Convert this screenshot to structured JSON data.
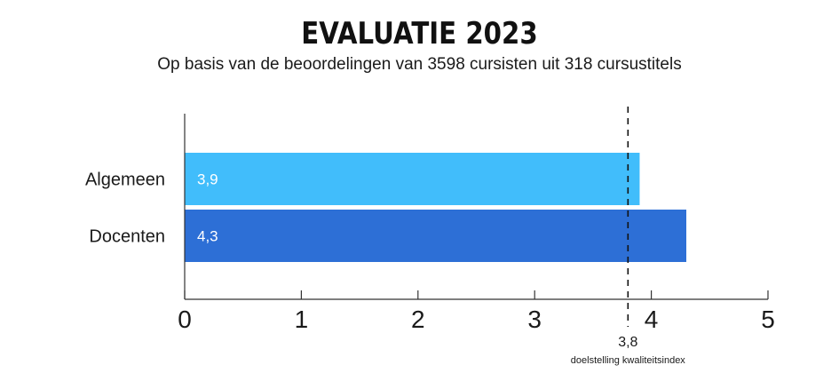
{
  "chart_data": {
    "type": "bar",
    "orientation": "horizontal",
    "title": "EVALUATIE 2023",
    "subtitle": "Op basis van de beoordelingen van 3598 cursisten uit 318 cursustitels",
    "categories": [
      "Algemeen",
      "Docenten"
    ],
    "values": [
      3.9,
      4.3
    ],
    "value_labels": [
      "3,9",
      "4,3"
    ],
    "bar_colors": [
      "#41bdfb",
      "#2d6fd6"
    ],
    "xlim": [
      0,
      5
    ],
    "xticks": [
      0,
      1,
      2,
      3,
      4,
      5
    ],
    "xtick_labels": [
      "0",
      "1",
      "2",
      "3",
      "4",
      "5"
    ],
    "grid": false,
    "reference_line": {
      "value": 3.8,
      "label": "3,8",
      "caption": "doelstelling kwaliteitsindex",
      "style": "dashed"
    }
  }
}
